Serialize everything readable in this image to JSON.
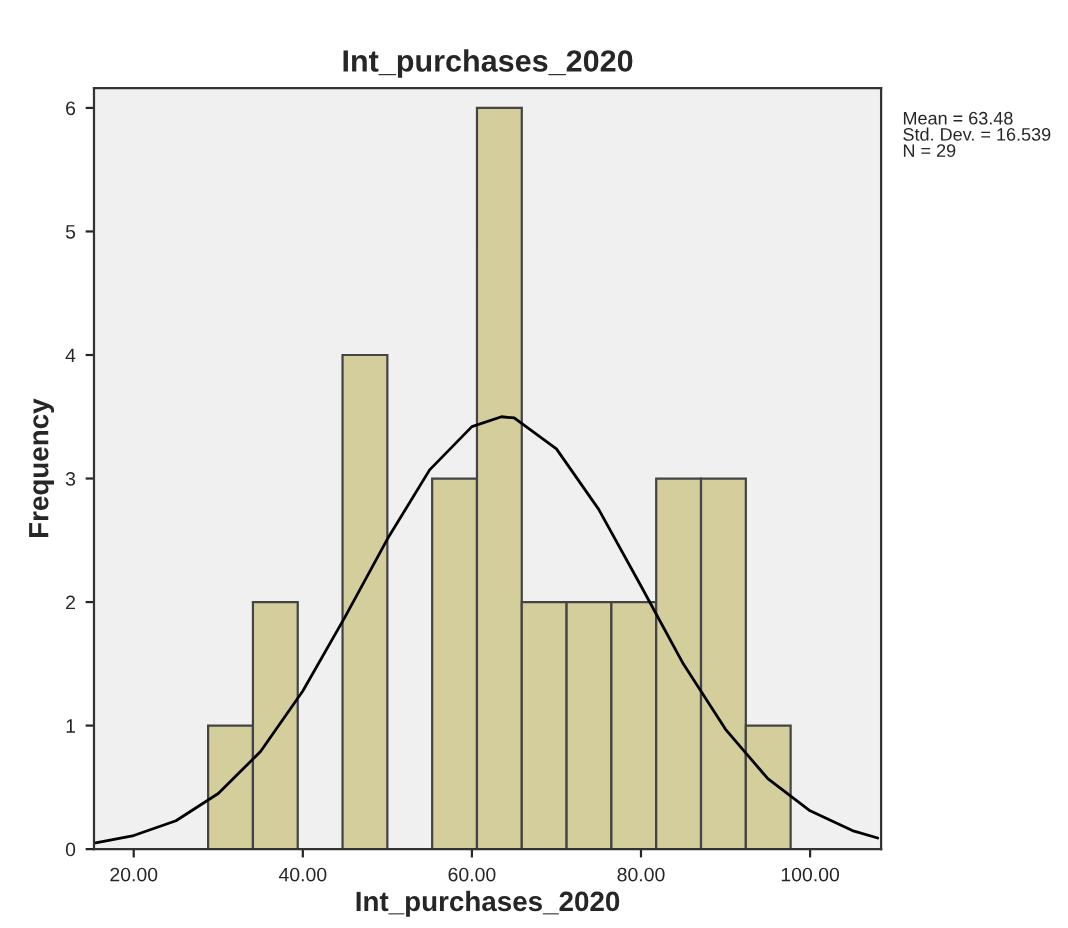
{
  "chart_data": {
    "type": "histogram",
    "title": "Int_purchases_2020",
    "xlabel": "Int_purchases_2020",
    "ylabel": "Frequency",
    "series": [
      {
        "color": "#d3ce9b",
        "bins": [
          28.8,
          34.1,
          39.4,
          44.7,
          50.0,
          55.3,
          60.6,
          65.9,
          71.2,
          76.5,
          81.8,
          87.1,
          92.4,
          97.7
        ],
        "values": [
          1,
          2,
          0,
          4,
          0,
          3,
          6,
          2,
          2,
          2,
          3,
          3,
          1
        ]
      },
      {
        "type": "line",
        "color": "#000000",
        "x": [
          15.5,
          20,
          25,
          30,
          35,
          40,
          45,
          50,
          55,
          60,
          63.5,
          65,
          70,
          75,
          80,
          85,
          90,
          95,
          100,
          105,
          108
        ],
        "values": [
          0.05,
          0.11,
          0.23,
          0.45,
          0.79,
          1.28,
          1.88,
          2.51,
          3.07,
          3.42,
          3.5,
          3.49,
          3.24,
          2.75,
          2.13,
          1.5,
          0.97,
          0.57,
          0.31,
          0.15,
          0.09
        ]
      }
    ],
    "xlim": [
      15.3,
      108.4
    ],
    "ylim": [
      0,
      6.16
    ],
    "xticks": [
      {
        "value": 20,
        "label": "20.00"
      },
      {
        "value": 40,
        "label": "40.00"
      },
      {
        "value": 60,
        "label": "60.00"
      },
      {
        "value": 80,
        "label": "80.00"
      },
      {
        "value": 100,
        "label": "100.00"
      }
    ],
    "yticks": [
      0,
      1,
      2,
      3,
      4,
      5,
      6
    ],
    "annotations": [
      "Mean = 63.48\nStd. Dev. = 16.539\nN = 29"
    ],
    "grid": false,
    "legend": false
  }
}
